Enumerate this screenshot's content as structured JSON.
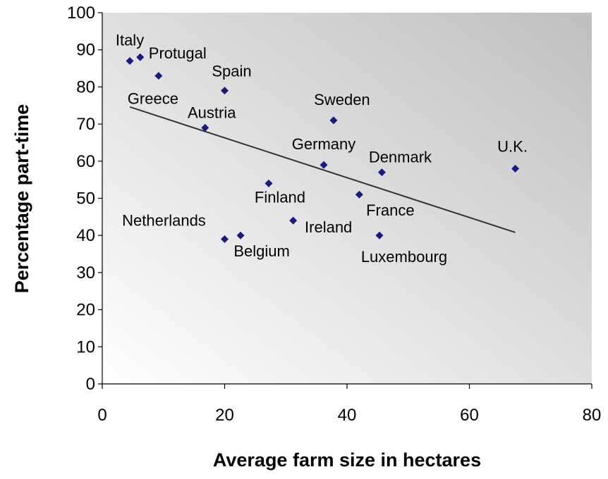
{
  "chart_data": {
    "type": "scatter",
    "title": "",
    "xlabel": "Average farm size in hectares",
    "ylabel": "Percentage part-time",
    "xlim": [
      0,
      80
    ],
    "ylim": [
      0,
      100
    ],
    "x_ticks": [
      0,
      20,
      40,
      60,
      80
    ],
    "y_ticks": [
      0,
      10,
      20,
      30,
      40,
      50,
      60,
      70,
      80,
      90,
      100
    ],
    "grid": false,
    "legend": "none",
    "plot_background": "gradient from #c0c0c0 (top-right) to #ffffff (bottom-left)",
    "marker": {
      "shape": "diamond",
      "color": "#1a1a80"
    },
    "points": [
      {
        "label": "Italy",
        "x": 4.5,
        "y": 87
      },
      {
        "label": "Protugal",
        "x": 6.2,
        "y": 88
      },
      {
        "label": "Greece",
        "x": 9.2,
        "y": 83
      },
      {
        "label": "Spain",
        "x": 20.0,
        "y": 79
      },
      {
        "label": "Austria",
        "x": 16.8,
        "y": 69
      },
      {
        "label": "Sweden",
        "x": 37.8,
        "y": 71
      },
      {
        "label": "Germany",
        "x": 36.2,
        "y": 59
      },
      {
        "label": "Denmark",
        "x": 45.7,
        "y": 57
      },
      {
        "label": "U.K.",
        "x": 67.5,
        "y": 58
      },
      {
        "label": "Finland",
        "x": 27.2,
        "y": 54
      },
      {
        "label": "France",
        "x": 42.0,
        "y": 51
      },
      {
        "label": "Netherlands",
        "x": 20.0,
        "y": 39
      },
      {
        "label": "Belgium",
        "x": 22.6,
        "y": 40
      },
      {
        "label": "Ireland",
        "x": 31.2,
        "y": 44
      },
      {
        "label": "Luxembourg",
        "x": 45.3,
        "y": 40
      }
    ],
    "trendline": {
      "type": "linear",
      "x": [
        4.5,
        67.5
      ],
      "y": [
        74.6,
        40.8
      ],
      "color": "#333333"
    }
  }
}
